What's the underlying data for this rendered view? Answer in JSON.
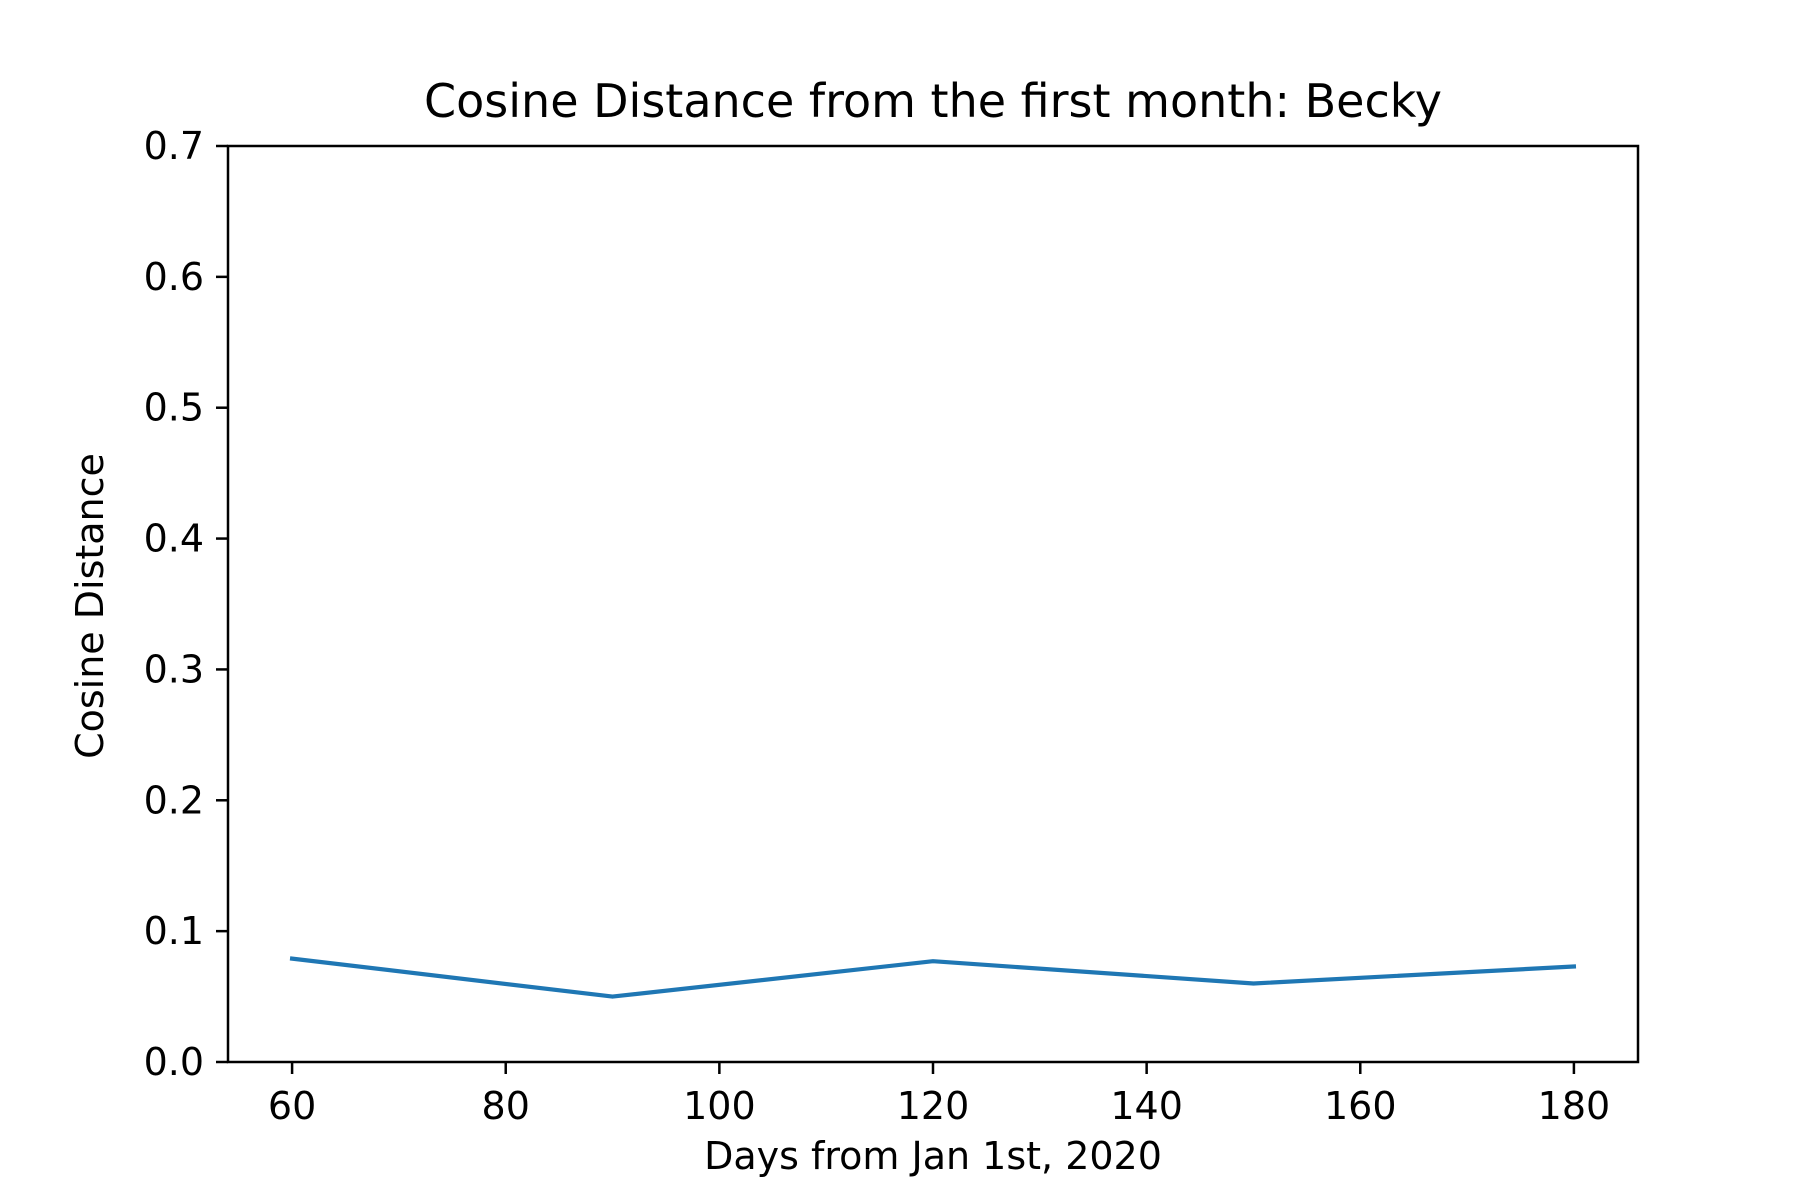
{
  "chart_data": {
    "type": "line",
    "title": "Cosine Distance from the first month: Becky",
    "xlabel": "Days from Jan 1st, 2020",
    "ylabel": "Cosine Distance",
    "xlim": [
      54,
      186
    ],
    "ylim": [
      0.0,
      0.7
    ],
    "xticks": [
      60,
      80,
      100,
      120,
      140,
      160,
      180
    ],
    "xtick_labels": [
      "60",
      "80",
      "100",
      "120",
      "140",
      "160",
      "180"
    ],
    "yticks": [
      0.0,
      0.1,
      0.2,
      0.3,
      0.4,
      0.5,
      0.6,
      0.7
    ],
    "ytick_labels": [
      "0.0",
      "0.1",
      "0.2",
      "0.3",
      "0.4",
      "0.5",
      "0.6",
      "0.7"
    ],
    "grid": false,
    "series": [
      {
        "x": [
          60,
          90,
          120,
          150,
          180
        ],
        "values": [
          0.079,
          0.05,
          0.077,
          0.06,
          0.073
        ],
        "color": "#1f77b4"
      }
    ]
  }
}
